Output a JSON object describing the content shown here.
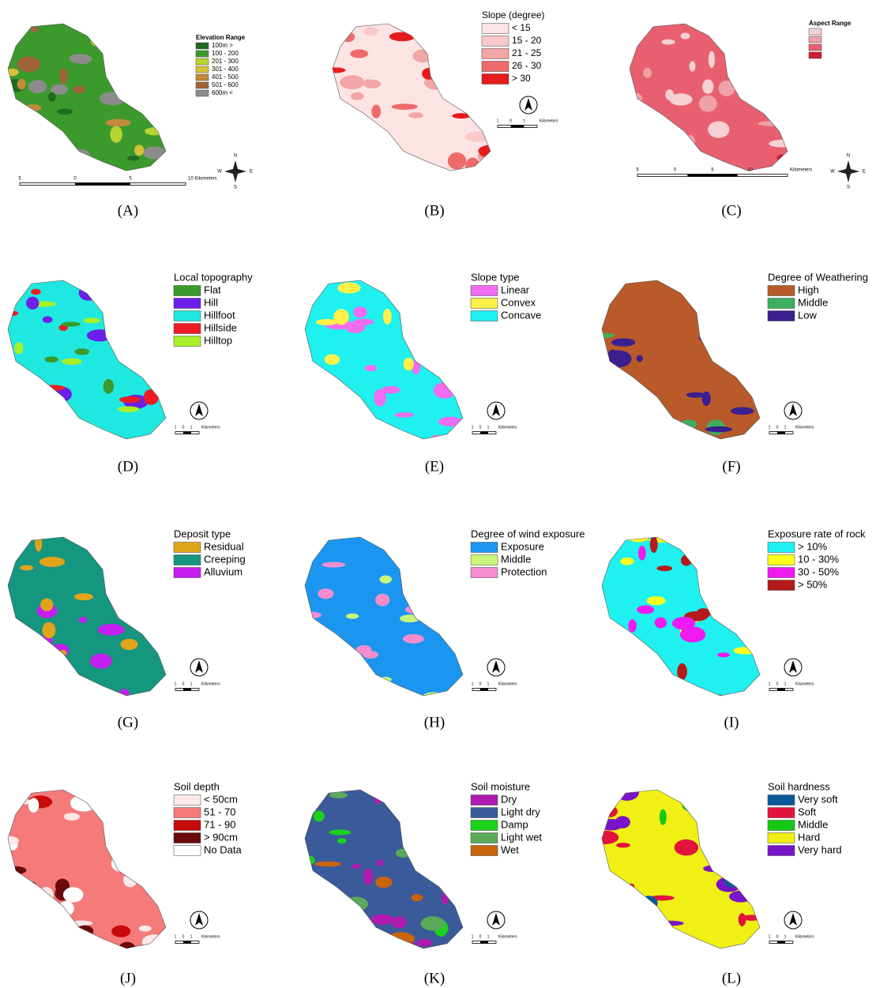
{
  "panels": [
    {
      "label": "(A)",
      "legend": {
        "title": "Elevation Range",
        "items": [
          {
            "label": "100m >",
            "color": "#1f6b1f"
          },
          {
            "label": "100 - 200",
            "color": "#3c9a2c"
          },
          {
            "label": "201 - 300",
            "color": "#b7d531"
          },
          {
            "label": "301 - 400",
            "color": "#d6c13a"
          },
          {
            "label": "401 - 500",
            "color": "#c48a3b"
          },
          {
            "label": "501 - 600",
            "color": "#a0643a"
          },
          {
            "label": "600m <",
            "color": "#8c8c8c"
          }
        ]
      },
      "scale": [
        "5",
        "0",
        "5",
        "10 Kilometers"
      ],
      "compass": [
        "N",
        "S",
        "E",
        "W"
      ]
    },
    {
      "label": "(B)",
      "legend": {
        "title": "Slope (degree)",
        "items": [
          {
            "label": "< 15",
            "color": "#fde4e4"
          },
          {
            "label": "15 - 20",
            "color": "#f9c9c9"
          },
          {
            "label": "21 - 25",
            "color": "#f4a5a5"
          },
          {
            "label": "26 - 30",
            "color": "#ef6b6b"
          },
          {
            "label": "> 30",
            "color": "#e51c1c"
          }
        ]
      },
      "scale": [
        "1",
        "0",
        "1",
        "Kilometers"
      ]
    },
    {
      "label": "(C)",
      "legend": {
        "title": "Aspect Range",
        "items": [
          {
            "color": "#f6d0d4"
          },
          {
            "color": "#f0a0a8"
          },
          {
            "color": "#e86070"
          },
          {
            "color": "#d01c30"
          }
        ]
      },
      "scale": [
        "5",
        "0",
        "5",
        "10",
        "Kilometers"
      ],
      "compass": [
        "N",
        "S",
        "E",
        "W"
      ]
    },
    {
      "label": "(D)",
      "legend": {
        "title": "Local topography",
        "items": [
          {
            "label": "Flat",
            "color": "#3a9a2a"
          },
          {
            "label": "Hill",
            "color": "#6b1fe8"
          },
          {
            "label": "Hillfoot",
            "color": "#1fe8e0"
          },
          {
            "label": "Hillside",
            "color": "#ee1c24"
          },
          {
            "label": "Hilltop",
            "color": "#a8f02a"
          }
        ]
      },
      "scale": [
        "1",
        "0",
        "1",
        "Kilometers"
      ]
    },
    {
      "label": "(E)",
      "legend": {
        "title": "Slope type",
        "items": [
          {
            "label": "Linear",
            "color": "#f06cf0"
          },
          {
            "label": "Convex",
            "color": "#fff04a"
          },
          {
            "label": "Concave",
            "color": "#1ff0f0"
          }
        ]
      },
      "scale": [
        "1",
        "0",
        "1",
        "Kilometers"
      ]
    },
    {
      "label": "(F)",
      "legend": {
        "title": "Degree of Weathering",
        "items": [
          {
            "label": "High",
            "color": "#b85a2a"
          },
          {
            "label": "Middle",
            "color": "#3daf5f"
          },
          {
            "label": "Low",
            "color": "#3a1f8f"
          }
        ]
      },
      "scale": [
        "1",
        "0",
        "1",
        "Kilometers"
      ]
    },
    {
      "label": "(G)",
      "legend": {
        "title": "Deposit type",
        "items": [
          {
            "label": "Residual",
            "color": "#e0a41a"
          },
          {
            "label": "Creeping",
            "color": "#14967f"
          },
          {
            "label": "Alluvium",
            "color": "#c41ff0"
          }
        ]
      },
      "scale": [
        "1",
        "0",
        "1",
        "Kilometers"
      ]
    },
    {
      "label": "(H)",
      "legend": {
        "title": "Degree of wind exposure",
        "items": [
          {
            "label": "Exposure",
            "color": "#1a96f0"
          },
          {
            "label": "Middle",
            "color": "#c8f57a"
          },
          {
            "label": "Protection",
            "color": "#f58ccd"
          }
        ]
      },
      "scale": [
        "1",
        "0",
        "1",
        "Kilometers"
      ]
    },
    {
      "label": "(I)",
      "legend": {
        "title": "Exposure rate of rock",
        "items": [
          {
            "label": "> 10%",
            "color": "#1ff0f0"
          },
          {
            "label": "10 - 30%",
            "color": "#ffff1a"
          },
          {
            "label": "30 - 50%",
            "color": "#f01af0"
          },
          {
            "label": "> 50%",
            "color": "#b51a1a"
          }
        ]
      },
      "scale": [
        "1",
        "0",
        "1",
        "Kilometers"
      ]
    },
    {
      "label": "(J)",
      "legend": {
        "title": "Soil depth",
        "items": [
          {
            "label": "< 50cm",
            "color": "#fde8e8"
          },
          {
            "label": "51 - 70",
            "color": "#f57a7a"
          },
          {
            "label": "71 - 90",
            "color": "#c80a0a"
          },
          {
            "label": "> 90cm",
            "color": "#6a0a0a"
          },
          {
            "label": "No Data",
            "color": "#ffffff"
          }
        ]
      },
      "scale": [
        "1",
        "0",
        "1",
        "Kilometers"
      ]
    },
    {
      "label": "(K)",
      "legend": {
        "title": "Soil moisture",
        "items": [
          {
            "label": "Dry",
            "color": "#b01ab0"
          },
          {
            "label": "Light dry",
            "color": "#3a5a9a"
          },
          {
            "label": "Damp",
            "color": "#1ad21a"
          },
          {
            "label": "Light wet",
            "color": "#5aaa5a"
          },
          {
            "label": "Wet",
            "color": "#c8640a"
          }
        ]
      },
      "scale": [
        "1",
        "0",
        "1",
        "Kilometers"
      ]
    },
    {
      "label": "(L)",
      "legend": {
        "title": "Soil hardness",
        "items": [
          {
            "label": "Very soft",
            "color": "#0a5a9a"
          },
          {
            "label": "Soft",
            "color": "#e0143c"
          },
          {
            "label": "Middle",
            "color": "#14c814"
          },
          {
            "label": "Hard",
            "color": "#f0f014"
          },
          {
            "label": "Very hard",
            "color": "#7a14c8"
          }
        ]
      },
      "scale": [
        "1",
        "0",
        "1",
        "Kilometers"
      ]
    }
  ]
}
